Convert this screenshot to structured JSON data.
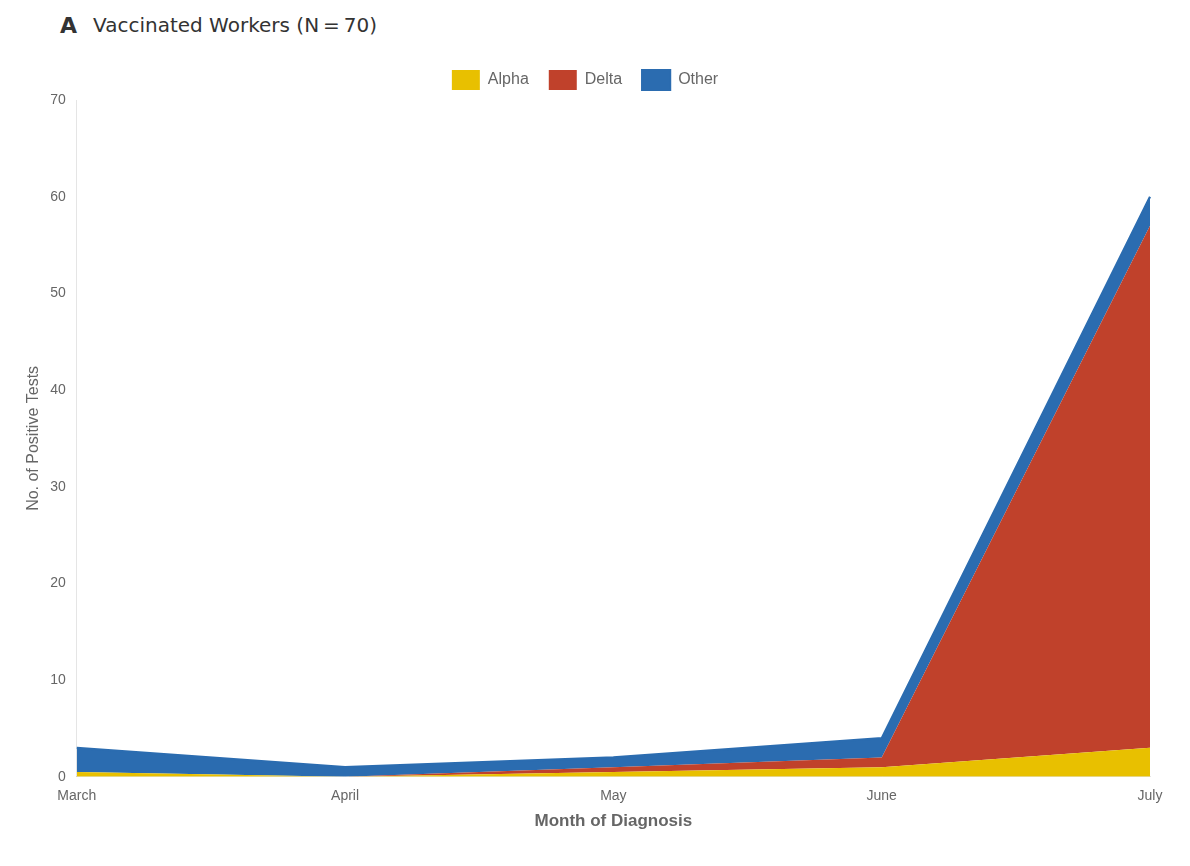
{
  "chart_data": {
    "type": "area",
    "title": "Vaccinated Workers (N = 70)",
    "annotations": [
      "A"
    ],
    "categories": [
      "March",
      "April",
      "May",
      "June",
      "July"
    ],
    "series": [
      {
        "name": "Alpha",
        "color": "#E8C000",
        "values": [
          0.5,
          0.0,
          0.5,
          1.0,
          3.0
        ]
      },
      {
        "name": "Delta",
        "color": "#C0412B",
        "values": [
          0.0,
          0.0,
          0.5,
          1.0,
          54.0
        ]
      },
      {
        "name": "Other",
        "color": "#2B6CB0",
        "values": [
          2.5,
          1.0,
          1.0,
          2.0,
          3.0
        ]
      }
    ],
    "stacked": true,
    "xlabel": "Month of Diagnosis",
    "ylabel": "No. of Positive Tests",
    "ylim": [
      0,
      70
    ],
    "yticks": [
      0,
      10,
      20,
      30,
      40,
      50,
      60,
      70
    ],
    "grid": false,
    "legend": "top"
  }
}
